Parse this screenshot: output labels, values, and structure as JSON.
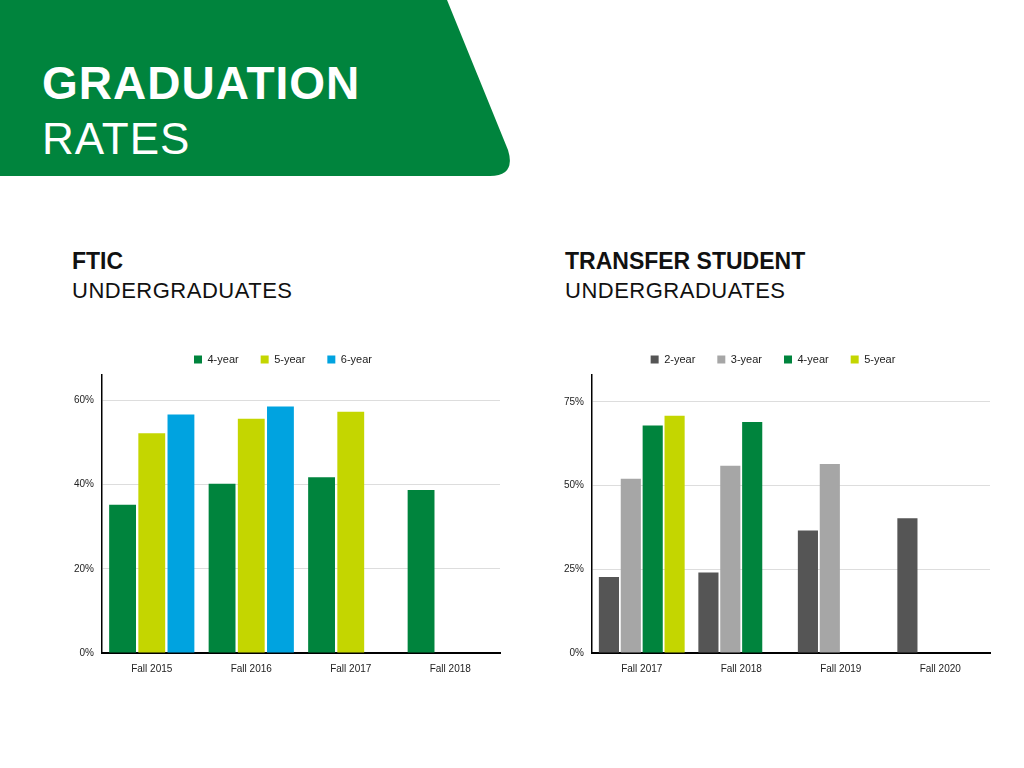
{
  "header": {
    "title": "GRADUATION",
    "subtitle": "RATES"
  },
  "chart_data": [
    {
      "type": "bar",
      "title": "FTIC",
      "subtitle": "UNDERGRADUATES",
      "categories": [
        "Fall 2015",
        "Fall 2016",
        "Fall 2017",
        "Fall 2018"
      ],
      "series": [
        {
          "name": "4-year",
          "color": "#00843d",
          "values": [
            35.2,
            40.2,
            41.7,
            38.7
          ]
        },
        {
          "name": "5-year",
          "color": "#c4d600",
          "values": [
            52.2,
            55.6,
            57.3,
            null
          ]
        },
        {
          "name": "6-year",
          "color": "#00a3e0",
          "values": [
            56.6,
            58.5,
            null,
            null
          ]
        }
      ],
      "ylim": [
        0,
        66
      ],
      "yticks": [
        {
          "value": 0,
          "label": "0%"
        },
        {
          "value": 20,
          "label": "20%"
        },
        {
          "value": 40,
          "label": "40%"
        },
        {
          "value": 60,
          "label": "60%"
        }
      ],
      "grid": true,
      "legend": "top"
    },
    {
      "type": "bar",
      "title": "TRANSFER STUDENT",
      "subtitle": "UNDERGRADUATES",
      "categories": [
        "Fall 2017",
        "Fall 2018",
        "Fall 2019",
        "Fall 2020"
      ],
      "series": [
        {
          "name": "2-year",
          "color": "#555555",
          "values": [
            22.7,
            24.0,
            36.6,
            40.2
          ]
        },
        {
          "name": "3-year",
          "color": "#a6a6a6",
          "values": [
            52.0,
            55.9,
            56.4,
            null
          ]
        },
        {
          "name": "4-year",
          "color": "#00843d",
          "values": [
            67.9,
            69.0,
            null,
            null
          ]
        },
        {
          "name": "5-year",
          "color": "#c4d600",
          "values": [
            70.8,
            null,
            null,
            null
          ]
        }
      ],
      "ylim": [
        0,
        83
      ],
      "yticks": [
        {
          "value": 0,
          "label": "0%"
        },
        {
          "value": 25,
          "label": "25%"
        },
        {
          "value": 50,
          "label": "50%"
        },
        {
          "value": 75,
          "label": "75%"
        }
      ],
      "grid": true,
      "legend": "top"
    }
  ]
}
